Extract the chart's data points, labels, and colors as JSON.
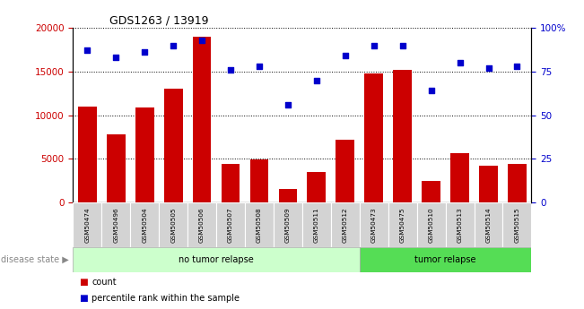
{
  "title": "GDS1263 / 13919",
  "categories": [
    "GSM50474",
    "GSM50496",
    "GSM50504",
    "GSM50505",
    "GSM50506",
    "GSM50507",
    "GSM50508",
    "GSM50509",
    "GSM50511",
    "GSM50512",
    "GSM50473",
    "GSM50475",
    "GSM50510",
    "GSM50513",
    "GSM50514",
    "GSM50515"
  ],
  "counts": [
    11000,
    7800,
    10900,
    13000,
    19000,
    4400,
    4900,
    1500,
    3500,
    7200,
    14800,
    15200,
    2500,
    5600,
    4200,
    4400
  ],
  "percentiles": [
    87,
    83,
    86,
    90,
    93,
    76,
    78,
    56,
    70,
    84,
    90,
    90,
    64,
    80,
    77,
    78
  ],
  "bar_color": "#cc0000",
  "dot_color": "#0000cc",
  "no_tumor_count": 10,
  "tumor_count": 6,
  "no_tumor_label": "no tumor relapse",
  "tumor_label": "tumor relapse",
  "disease_state_label": "disease state",
  "legend_count": "count",
  "legend_percentile": "percentile rank within the sample",
  "ylim_left": [
    0,
    20000
  ],
  "ylim_right": [
    0,
    100
  ],
  "yticks_left": [
    0,
    5000,
    10000,
    15000,
    20000
  ],
  "yticks_right": [
    0,
    25,
    50,
    75,
    100
  ],
  "yticklabels_right": [
    "0",
    "25",
    "50",
    "75",
    "100%"
  ],
  "tick_label_bg": "#d3d3d3",
  "no_tumor_bg": "#ccffcc",
  "tumor_bg": "#55dd55"
}
